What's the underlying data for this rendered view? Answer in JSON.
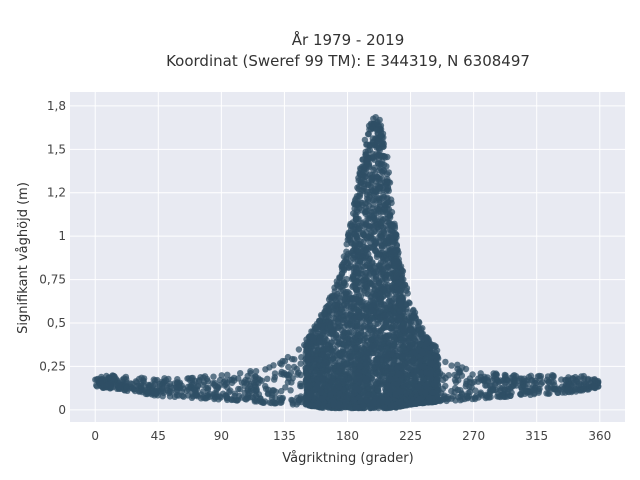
{
  "chart_data": {
    "type": "scatter",
    "title": [
      "År 1979 - 2019",
      "Koordinat (Sweref 99 TM): E 344319, N 6308497"
    ],
    "xlabel": "Vågriktning (grader)",
    "ylabel": "Signifikant våghöjd (m)",
    "xlim": [
      -18,
      378
    ],
    "ylim": [
      -0.07,
      1.83
    ],
    "x_ticks": [
      0,
      45,
      90,
      135,
      180,
      225,
      270,
      315,
      360
    ],
    "x_tick_labels": [
      "0",
      "45",
      "90",
      "135",
      "180",
      "225",
      "270",
      "315",
      "360"
    ],
    "y_ticks": [
      0,
      0.25,
      0.5,
      0.75,
      1,
      1.25,
      1.5,
      1.75
    ],
    "y_tick_labels": [
      "0",
      "0,25",
      "0,5",
      "0,75",
      "1",
      "1,2",
      "1,5",
      "1,8"
    ],
    "grid": true,
    "marker_color": "#2f4f66",
    "plot_background": "#e8eaf2",
    "envelope": {
      "direction": [
        0,
        15,
        45,
        90,
        120,
        140,
        155,
        165,
        175,
        185,
        192,
        198,
        203,
        208,
        213,
        218,
        225,
        235,
        250,
        270,
        300,
        340,
        360
      ],
      "upper_height": [
        0.19,
        0.2,
        0.18,
        0.2,
        0.24,
        0.32,
        0.46,
        0.6,
        0.8,
        1.2,
        1.55,
        1.7,
        1.68,
        1.5,
        1.1,
        0.85,
        0.62,
        0.44,
        0.3,
        0.22,
        0.2,
        0.2,
        0.19
      ],
      "lower_height": [
        0.13,
        0.12,
        0.08,
        0.06,
        0.04,
        0.03,
        0.02,
        0.01,
        0.01,
        0.01,
        0.01,
        0.01,
        0.01,
        0.01,
        0.01,
        0.02,
        0.03,
        0.04,
        0.05,
        0.06,
        0.08,
        0.1,
        0.13
      ]
    }
  }
}
